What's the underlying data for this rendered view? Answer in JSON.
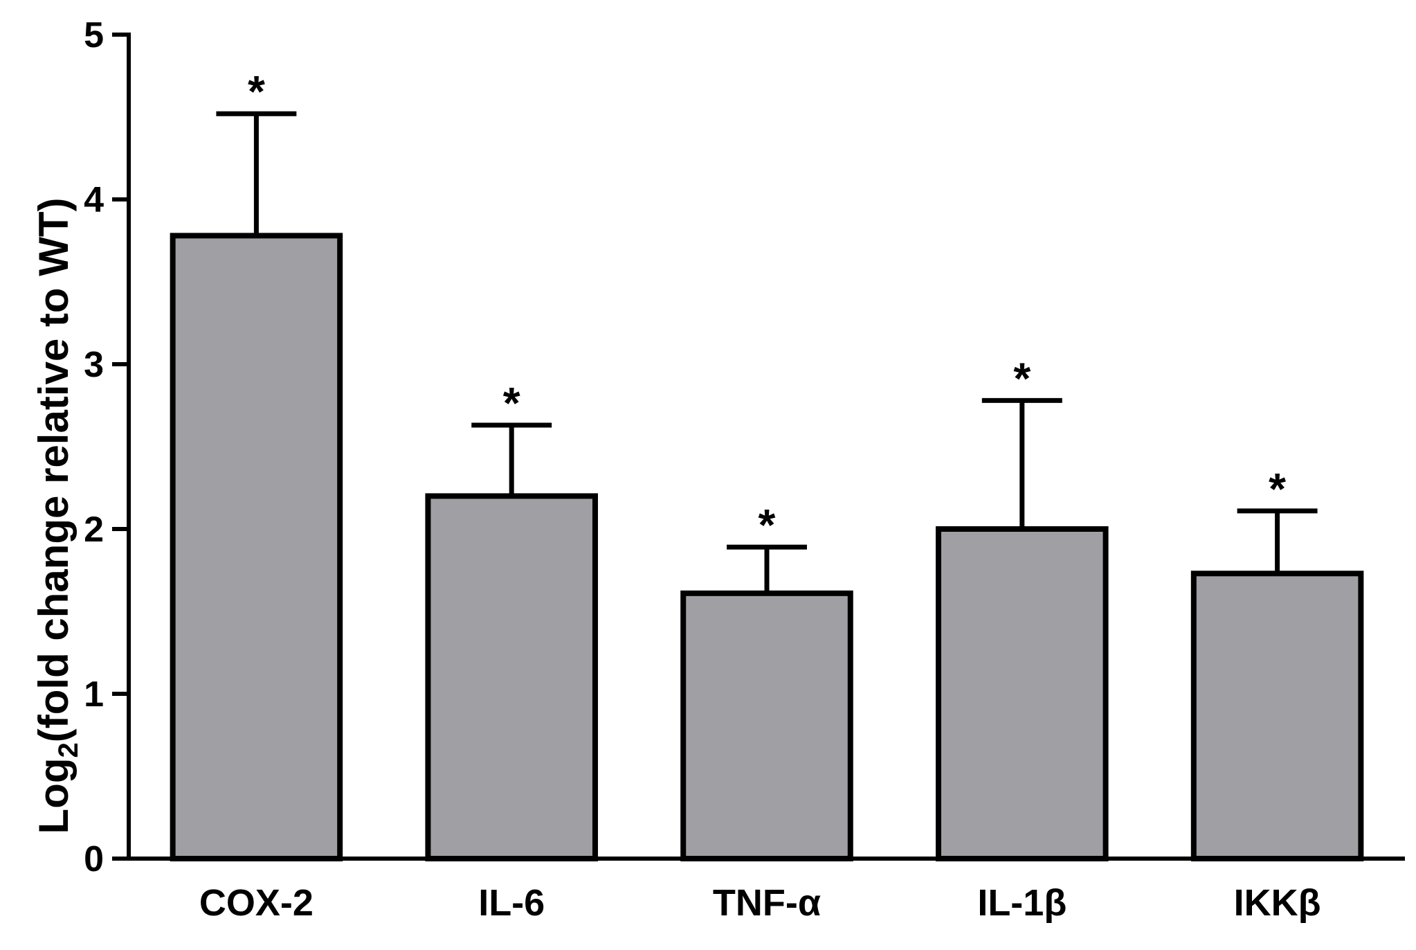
{
  "chart_data": {
    "type": "bar",
    "title": "",
    "xlabel": "",
    "ylabel": {
      "prefix": "Log",
      "subscript": "2",
      "suffix": "(fold change relative to WT)"
    },
    "ylim": [
      0,
      5
    ],
    "yticks": [
      0,
      1,
      2,
      3,
      4,
      5
    ],
    "categories": [
      "COX-2",
      "IL-6",
      "TNF-α",
      "IL-1β",
      "IKKβ"
    ],
    "values": [
      3.78,
      2.2,
      1.61,
      2.0,
      1.73
    ],
    "errors": [
      0.74,
      0.43,
      0.28,
      0.78,
      0.38
    ],
    "significance": [
      "*",
      "*",
      "*",
      "*",
      "*"
    ],
    "bar_color": "#a09fa4",
    "edge_color": "#000000",
    "grid": false
  }
}
